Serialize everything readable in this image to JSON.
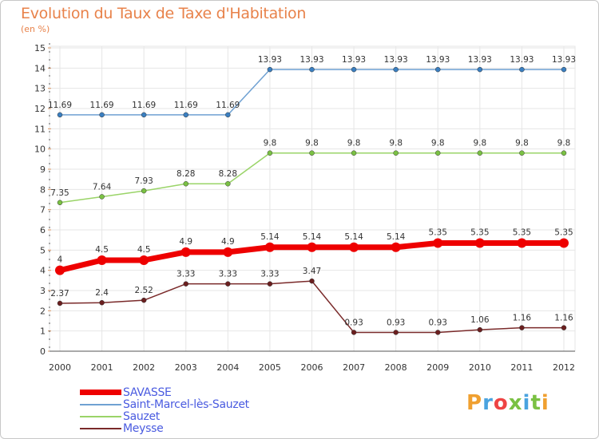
{
  "title": "Evolution du Taux de Taxe d'Habitation",
  "subtitle": "(en %)",
  "logo": {
    "text": "Proxiti",
    "colors": [
      "#f0a030",
      "#4aa3df",
      "#e44",
      "#7ac143",
      "#4aa3df",
      "#7ac143",
      "#f0a030"
    ]
  },
  "chart_data": {
    "type": "line",
    "x": [
      2000,
      2001,
      2002,
      2003,
      2004,
      2005,
      2006,
      2007,
      2008,
      2009,
      2010,
      2011,
      2012
    ],
    "ylim": [
      0,
      15
    ],
    "yticks": [
      0,
      1,
      2,
      3,
      4,
      5,
      6,
      7,
      8,
      9,
      10,
      11,
      12,
      13,
      14,
      15
    ],
    "grid": true,
    "series": [
      {
        "name": "SAVASSE",
        "color": "#ee0000",
        "width": 7,
        "marker": "#ee0000",
        "values": [
          4,
          4.5,
          4.5,
          4.9,
          4.9,
          5.14,
          5.14,
          5.14,
          5.14,
          5.35,
          5.35,
          5.35,
          5.35
        ],
        "labels": [
          "4",
          "4.5",
          "4.5",
          "4.9",
          "4.9",
          "5.14",
          "5.14",
          "5.14",
          "5.14",
          "5.35",
          "5.35",
          "5.35",
          "5.35"
        ]
      },
      {
        "name": "Saint-Marcel-lès-Sauzet",
        "color": "#6fa1d2",
        "width": 1.5,
        "marker": "#3a7fc1",
        "values": [
          11.69,
          11.69,
          11.69,
          11.69,
          11.69,
          13.93,
          13.93,
          13.93,
          13.93,
          13.93,
          13.93,
          13.93,
          13.93
        ],
        "labels": [
          "11.69",
          "11.69",
          "11.69",
          "11.69",
          "11.69",
          "13.93",
          "13.93",
          "13.93",
          "13.93",
          "13.93",
          "13.93",
          "13.93",
          "13.93"
        ]
      },
      {
        "name": "Sauzet",
        "color": "#9ad468",
        "width": 1.5,
        "marker": "#7ac143",
        "values": [
          7.35,
          7.64,
          7.93,
          8.28,
          8.28,
          9.8,
          9.8,
          9.8,
          9.8,
          9.8,
          9.8,
          9.8,
          9.8
        ],
        "labels": [
          "7.35",
          "7.64",
          "7.93",
          "8.28",
          "8.28",
          "9.8",
          "9.8",
          "9.8",
          "9.8",
          "9.8",
          "9.8",
          "9.8",
          "9.8"
        ]
      },
      {
        "name": "Meysse",
        "color": "#7a2a2a",
        "width": 1.5,
        "marker": "#6b1f1f",
        "values": [
          2.37,
          2.4,
          2.52,
          3.33,
          3.33,
          3.33,
          3.47,
          0.93,
          0.93,
          0.93,
          1.06,
          1.16,
          1.16
        ],
        "labels": [
          "2.37",
          "2.4",
          "2.52",
          "3.33",
          "3.33",
          "3.33",
          "3.47",
          "0.93",
          "0.93",
          "0.93",
          "1.06",
          "1.16",
          "1.16"
        ]
      }
    ]
  }
}
